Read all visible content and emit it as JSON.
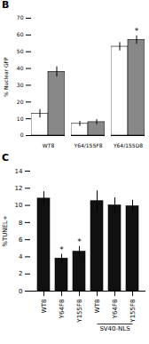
{
  "chart_data": [
    {
      "type": "bar",
      "title": "B",
      "ylabel": "% Nuclear GFP",
      "categories": [
        "WT8",
        "Y64/155F8",
        "Y64/155D8"
      ],
      "series": [
        {
          "color": "#ffffff",
          "values": [
            13,
            7,
            53
          ],
          "errors": [
            2.5,
            1.5,
            2.5
          ]
        },
        {
          "color": "#888888",
          "values": [
            38,
            8,
            57
          ],
          "errors": [
            3.0,
            1.5,
            2.5
          ]
        }
      ],
      "ylim": [
        0,
        70
      ],
      "yticks": [
        0,
        10,
        20,
        30,
        40,
        50,
        60,
        70
      ],
      "grid": false,
      "annotations": [
        {
          "text": "*",
          "category_index": 2,
          "series_index": 1
        }
      ]
    },
    {
      "type": "bar",
      "title": "C",
      "ylabel": "%TUNEL+",
      "categories": [
        "WT8",
        "Y64F8",
        "Y155F8",
        "WT8",
        "Y64F8",
        "Y155F8"
      ],
      "values": [
        10.8,
        3.8,
        4.6,
        10.5,
        10.0,
        9.9
      ],
      "errors": [
        0.8,
        0.5,
        0.6,
        1.2,
        0.9,
        0.7
      ],
      "color": "#111111",
      "ylim": [
        0,
        14
      ],
      "yticks": [
        0,
        2,
        4,
        6,
        8,
        10,
        12,
        14
      ],
      "grid": false,
      "annotations": [
        {
          "text": "*",
          "category_index": 1
        },
        {
          "text": "*",
          "category_index": 2
        },
        {
          "text": "SV40-NLS",
          "category_from": 3,
          "category_to": 5
        }
      ]
    }
  ]
}
